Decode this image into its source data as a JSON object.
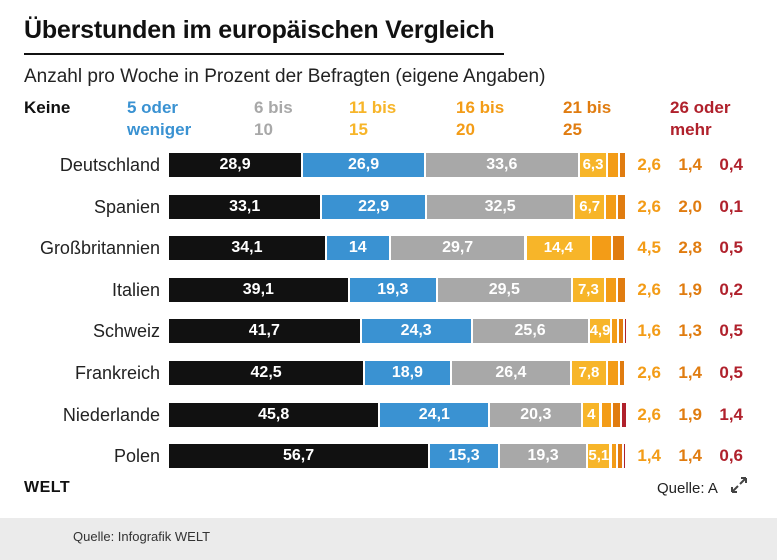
{
  "header": {
    "title": "Überstunden im europäischen Vergleich",
    "subtitle": "Anzahl pro Woche in Prozent der Befragten (eigene Angaben)"
  },
  "legend": [
    {
      "line1": "Keine",
      "line2": "",
      "color": "#111111"
    },
    {
      "line1": "5 oder",
      "line2": "weniger",
      "color": "#3a92d2"
    },
    {
      "line1": "6 bis",
      "line2": "10",
      "color": "#a8a8a8"
    },
    {
      "line1": "11 bis",
      "line2": "15",
      "color": "#f7b529"
    },
    {
      "line1": "16 bis",
      "line2": "20",
      "color": "#f39c17"
    },
    {
      "line1": "21 bis",
      "line2": "25",
      "color": "#e07c10"
    },
    {
      "line1": "26 oder",
      "line2": "mehr",
      "color": "#b0212c"
    }
  ],
  "chart_data": {
    "type": "bar",
    "orientation": "horizontal",
    "stacked": true,
    "title": "Überstunden im europäischen Vergleich",
    "subtitle": "Anzahl pro Woche in Prozent der Befragten (eigene Angaben)",
    "categories": [
      "Deutschland",
      "Spanien",
      "Großbritannien",
      "Italien",
      "Schweiz",
      "Frankreich",
      "Niederlande",
      "Polen"
    ],
    "series": [
      {
        "name": "Keine",
        "values": [
          28.9,
          33.1,
          34.1,
          39.1,
          41.7,
          42.5,
          45.8,
          56.7
        ],
        "labels": [
          "28,9",
          "33,1",
          "34,1",
          "39,1",
          "41,7",
          "42,5",
          "45,8",
          "56,7"
        ]
      },
      {
        "name": "5 oder weniger",
        "values": [
          26.9,
          22.9,
          14,
          19.3,
          24.3,
          18.9,
          24.1,
          15.3
        ],
        "labels": [
          "26,9",
          "22,9",
          "14",
          "19,3",
          "24,3",
          "18,9",
          "24,1",
          "15,3"
        ]
      },
      {
        "name": "6 bis 10",
        "values": [
          33.6,
          32.5,
          29.7,
          29.5,
          25.6,
          26.4,
          20.3,
          19.3
        ],
        "labels": [
          "33,6",
          "32,5",
          "29,7",
          "29,5",
          "25,6",
          "26,4",
          "20,3",
          "19,3"
        ]
      },
      {
        "name": "11 bis 15",
        "values": [
          6.3,
          6.7,
          14.4,
          7.3,
          4.9,
          7.8,
          4,
          5.1
        ],
        "labels": [
          "6,3",
          "6,7",
          "14,4",
          "7,3",
          "4,9",
          "7,8",
          "4",
          "5,1"
        ]
      },
      {
        "name": "16 bis 20",
        "values": [
          2.6,
          2.6,
          4.5,
          2.6,
          1.6,
          2.6,
          2.6,
          1.4
        ],
        "labels": [
          "2,6",
          "2,6",
          "4,5",
          "2,6",
          "1,6",
          "2,6",
          "2,6",
          "1,4"
        ]
      },
      {
        "name": "21 bis 25",
        "values": [
          1.4,
          2.0,
          2.8,
          1.9,
          1.3,
          1.4,
          1.9,
          1.4
        ],
        "labels": [
          "1,4",
          "2,0",
          "2,8",
          "1,9",
          "1,3",
          "1,4",
          "1,9",
          "1,4"
        ]
      },
      {
        "name": "26 oder mehr",
        "values": [
          0.4,
          0.1,
          0.5,
          0.2,
          0.5,
          0.5,
          1.4,
          0.6
        ],
        "labels": [
          "0,4",
          "0,1",
          "0,5",
          "0,2",
          "0,5",
          "0,5",
          "1,4",
          "0,6"
        ]
      }
    ],
    "xlim": [
      0,
      100
    ]
  },
  "brand": "WELT",
  "source_short": "Quelle: A",
  "footer": {
    "source": "Quelle: Infografik WELT"
  }
}
